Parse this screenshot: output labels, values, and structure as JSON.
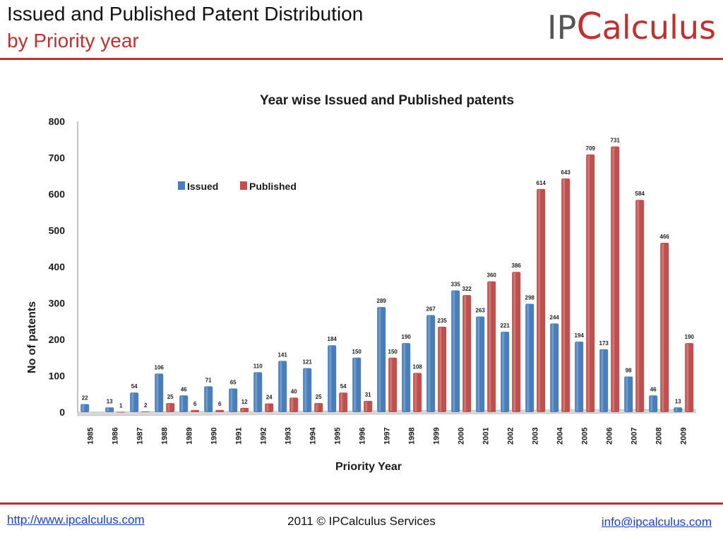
{
  "slide": {
    "title_line1": "Issued and Published Patent Distribution",
    "title_line2": "by Priority year",
    "logo_prefix": "IP",
    "logo_c": "C",
    "logo_rest": "alculus"
  },
  "footer": {
    "website": "http://www.ipcalculus.com",
    "copyright": "2011 © IPCalculus Services",
    "email": "info@ipcalculus.com"
  },
  "colors": {
    "brand_red": "#c0302e",
    "issued": "#4a7ebb",
    "published": "#c0504d"
  },
  "chart_data": {
    "type": "bar",
    "title": "Year wise Issued and Published patents",
    "xlabel": "Priority Year",
    "ylabel": "No of patents",
    "ylim": [
      0,
      800
    ],
    "yticks": [
      0,
      100,
      200,
      300,
      400,
      500,
      600,
      700,
      800
    ],
    "legend_position": "upper-left",
    "categories": [
      "1985",
      "1986",
      "1987",
      "1988",
      "1989",
      "1990",
      "1991",
      "1992",
      "1993",
      "1994",
      "1995",
      "1996",
      "1997",
      "1998",
      "1999",
      "2000",
      "2001",
      "2002",
      "2003",
      "2004",
      "2005",
      "2006",
      "2007",
      "2008",
      "2009"
    ],
    "series": [
      {
        "name": "Issued",
        "color": "#4a7ebb",
        "values": [
          22,
          13,
          54,
          106,
          46,
          71,
          65,
          110,
          141,
          121,
          184,
          150,
          289,
          190,
          267,
          335,
          263,
          221,
          298,
          244,
          194,
          173,
          98,
          46,
          13
        ]
      },
      {
        "name": "Published",
        "color": "#c0504d",
        "values": [
          null,
          1,
          2,
          25,
          6,
          6,
          12,
          24,
          40,
          25,
          54,
          31,
          150,
          108,
          235,
          322,
          360,
          386,
          614,
          643,
          709,
          731,
          584,
          466,
          190
        ]
      }
    ]
  }
}
